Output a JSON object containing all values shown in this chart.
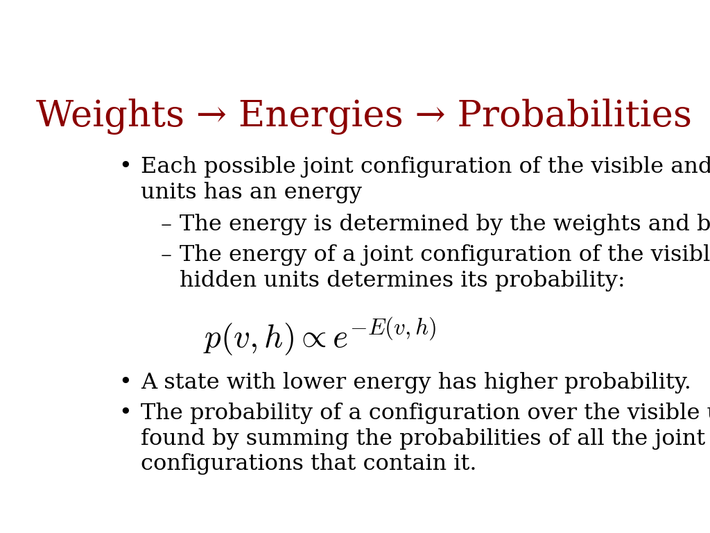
{
  "title": "Weights → Energies → Probabilities",
  "title_color": "#8B0000",
  "title_fontsize": 38,
  "background_color": "#ffffff",
  "text_color": "#000000",
  "bullet1_line1": "Each possible joint configuration of the visible and hidden",
  "bullet1_line2": "units has an energy",
  "sub1": "The energy is determined by the weights and biases",
  "sub2_line1": "The energy of a joint configuration of the visible and",
  "sub2_line2": "hidden units determines its probability:",
  "formula": "$p(v, h) \\propto e^{-E(v,h)}$",
  "bullet2": "A state with lower energy has higher probability.",
  "bullet3_line1": "The probability of a configuration over the visible units is",
  "bullet3_line2": "found by summing the probabilities of all the joint",
  "bullet3_line3": "configurations that contain it.",
  "body_fontsize": 23,
  "formula_fontsize": 34
}
